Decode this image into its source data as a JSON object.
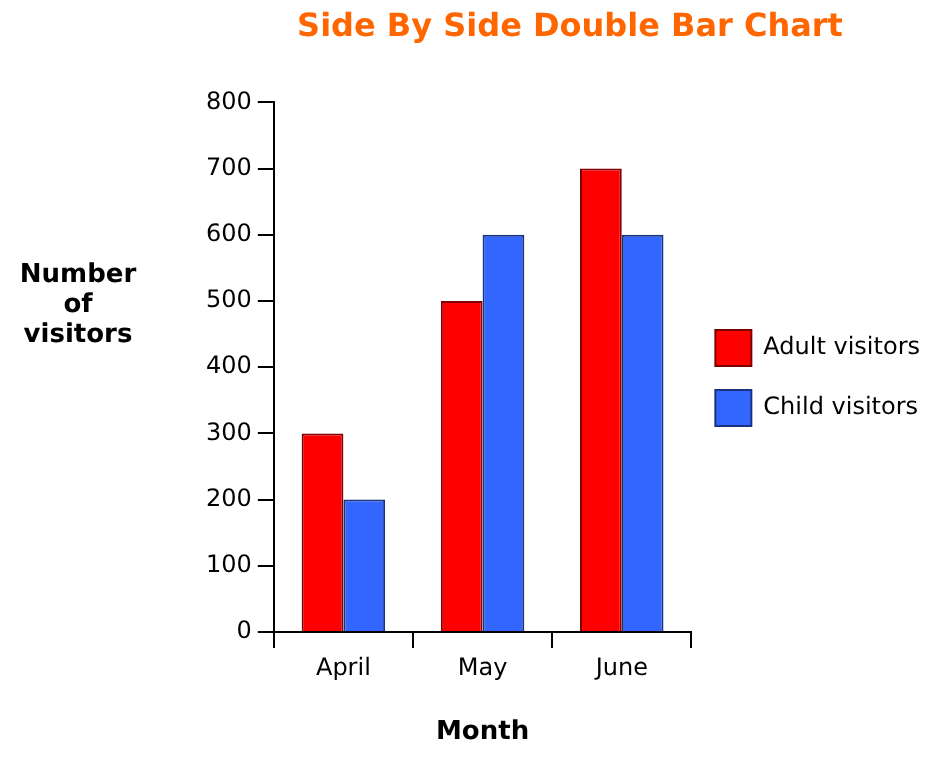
{
  "chart_data": {
    "type": "bar",
    "title": "Side By Side Double Bar Chart",
    "xlabel": "Month",
    "ylabel": "Number of visitors",
    "categories": [
      "April",
      "May",
      "June"
    ],
    "series": [
      {
        "name": "Adult visitors",
        "color": "#ff0000",
        "values": [
          300,
          500,
          700
        ]
      },
      {
        "name": "Child visitors",
        "color": "#3366ff",
        "values": [
          200,
          600,
          600
        ]
      }
    ],
    "ylim": [
      0,
      800
    ],
    "yticks": [
      0,
      100,
      200,
      300,
      400,
      500,
      600,
      700,
      800
    ],
    "legend": "right"
  }
}
